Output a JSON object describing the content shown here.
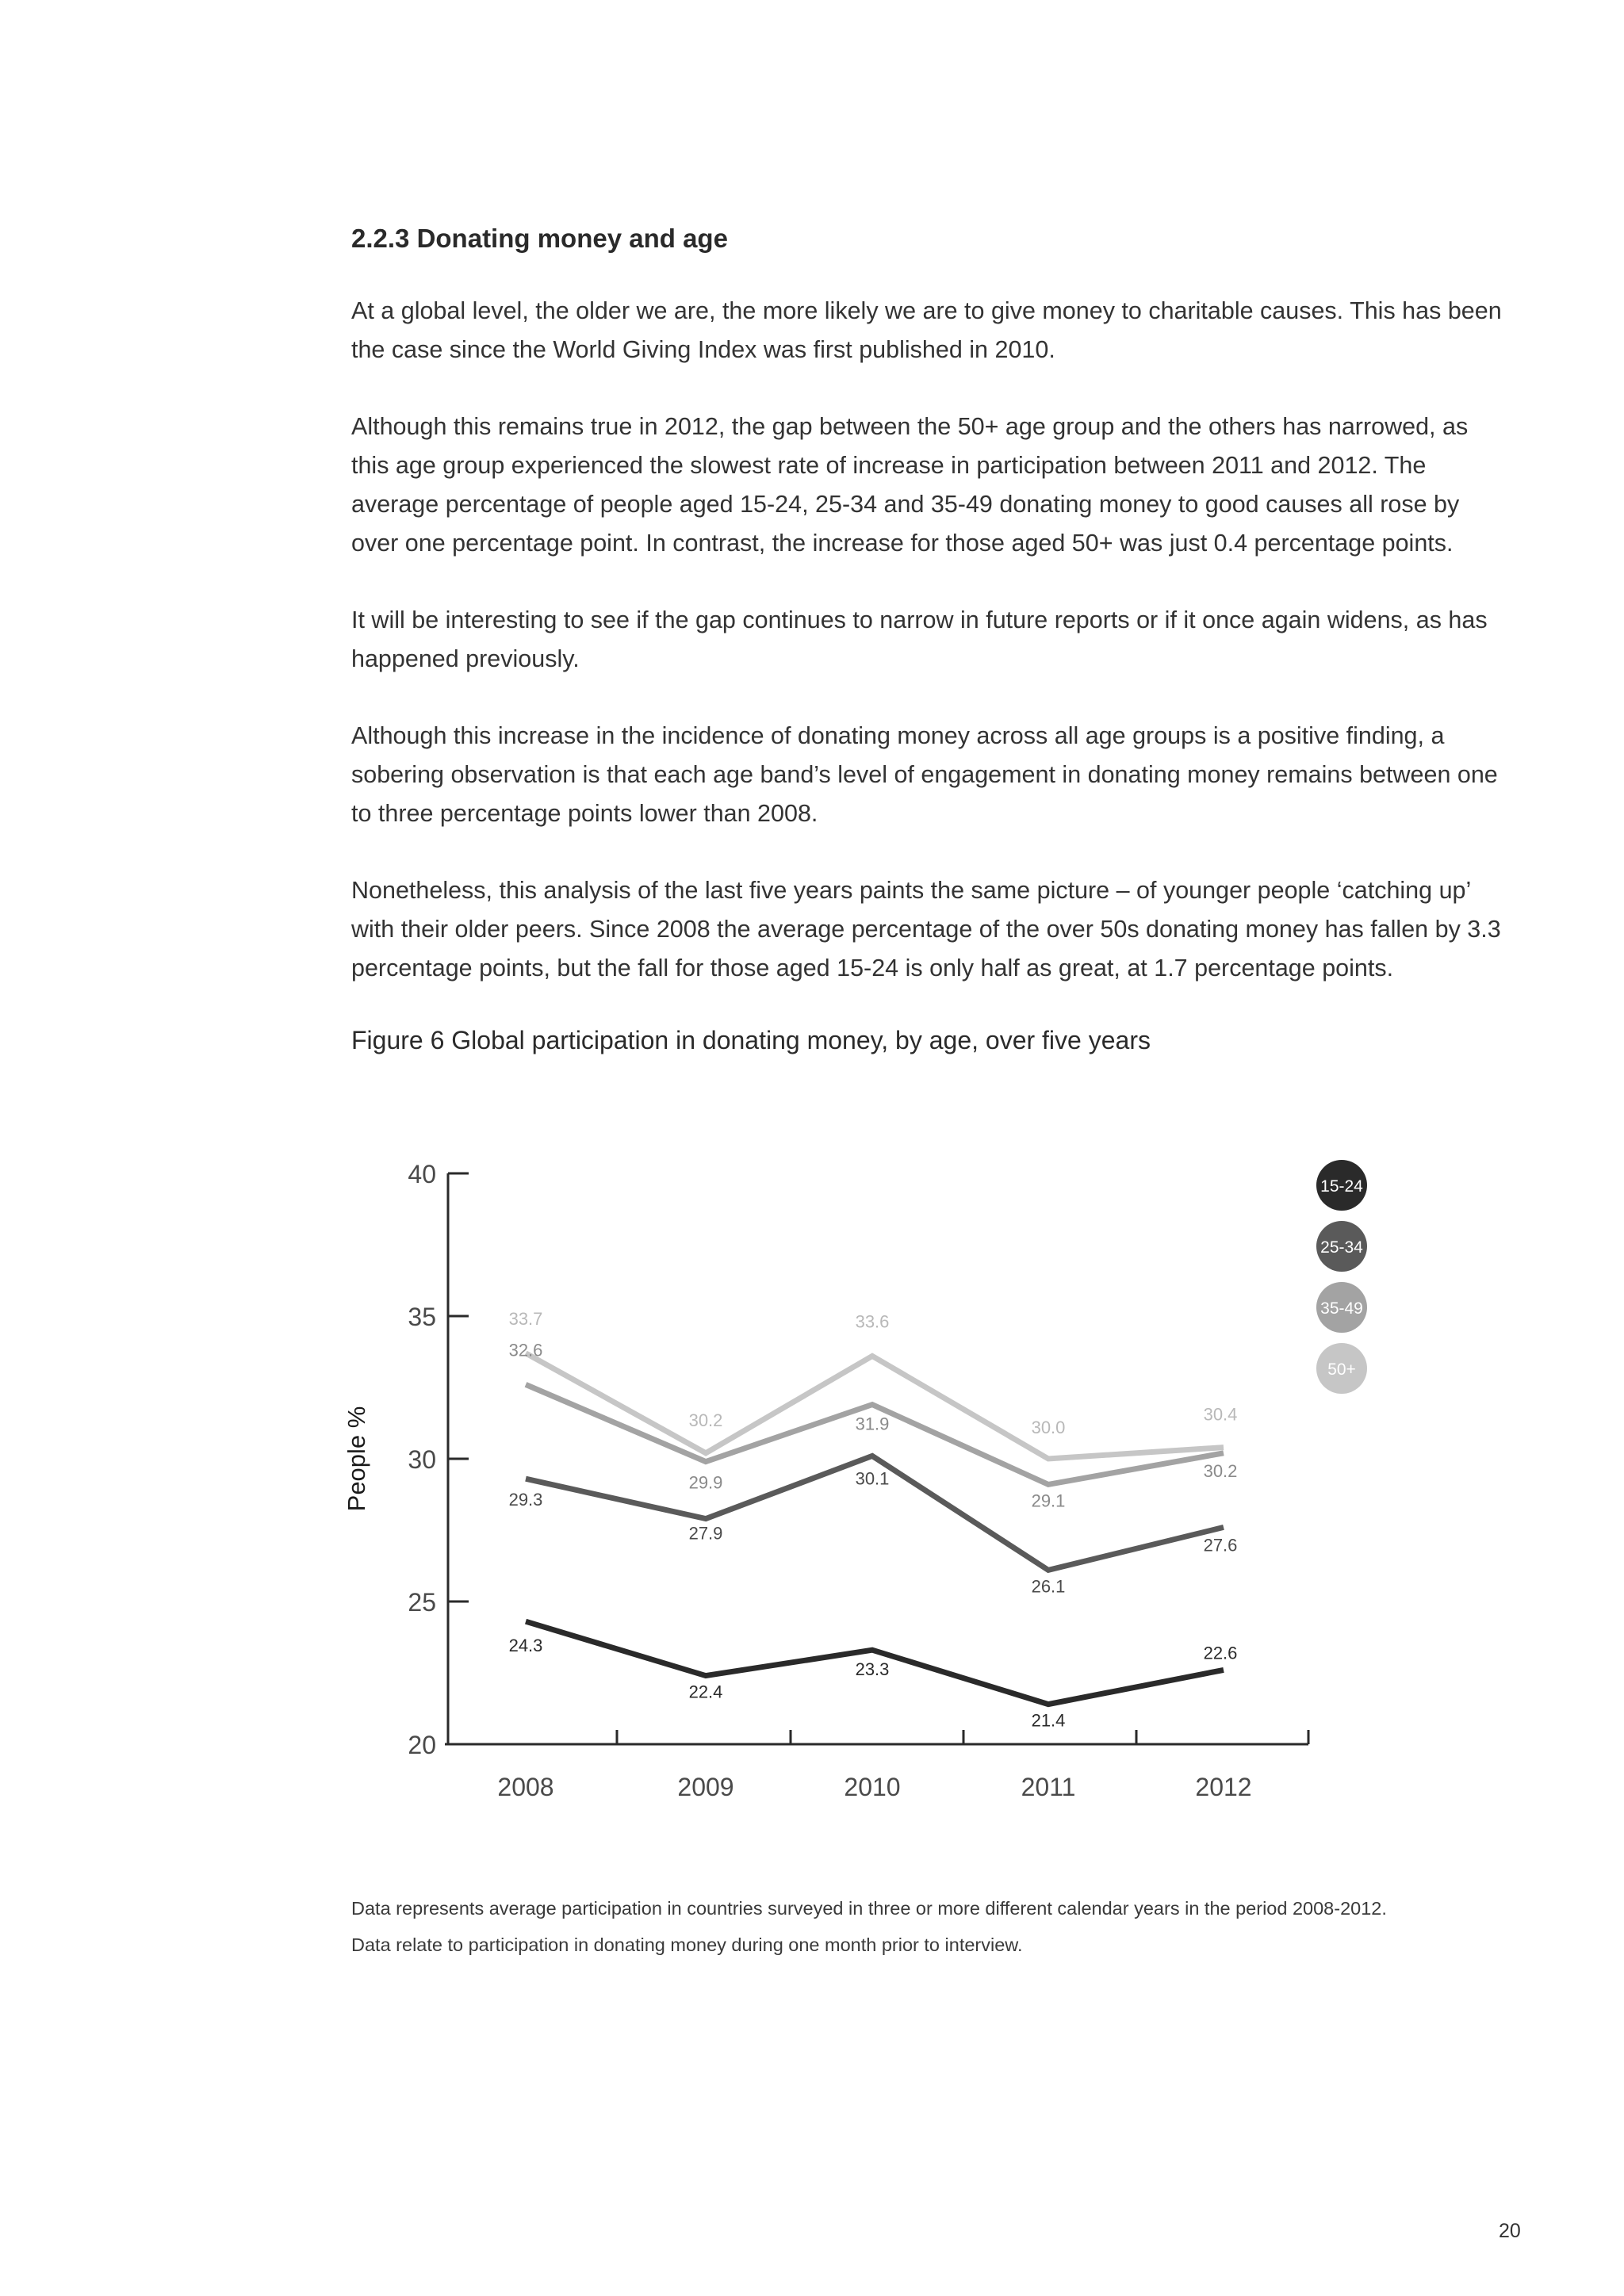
{
  "section": {
    "heading": "2.2.3  Donating money and age"
  },
  "paragraphs": [
    "At a global level, the older we are, the more likely we are to give money to charitable causes. This has been the case since the World Giving Index was first published in 2010.",
    "Although this remains true in 2012, the gap between the 50+ age group and the others has narrowed, as this age group experienced the slowest rate of increase in participation between 2011 and 2012. The average percentage of people aged 15-24, 25-34 and 35-49 donating money to good causes all rose by over one percentage point. In contrast, the increase for those aged 50+ was just 0.4 percentage points.",
    "It will be interesting to see if the gap continues to narrow in future reports or if it once again widens, as has happened previously.",
    "Although this increase in the incidence of donating money across all age groups is a positive finding, a sobering observation is that each age band’s level of engagement in donating money remains between one to three percentage points lower than 2008.",
    "Nonetheless, this analysis of the last five years paints the same picture – of younger people ‘catching up’ with their older peers. Since 2008 the average percentage of the over 50s donating money has fallen by 3.3 percentage points, but the fall for those aged 15-24 is only half as great, at 1.7 percentage points."
  ],
  "figure": {
    "title": "Figure 6  Global participation in donating money, by age, over five years"
  },
  "chart_data": {
    "type": "line",
    "title": "",
    "xlabel": "",
    "ylabel": "People %",
    "ylim": [
      20,
      40
    ],
    "yticks": [
      "20",
      "25",
      "30",
      "35",
      "40"
    ],
    "categories": [
      "2008",
      "2009",
      "2010",
      "2011",
      "2012"
    ],
    "series": [
      {
        "name": "15-24",
        "color": "#2a2a2a",
        "values": [
          24.3,
          22.4,
          23.3,
          21.4,
          22.6
        ],
        "labels": [
          "24.3",
          "22.4",
          "23.3",
          "21.4",
          "22.6"
        ]
      },
      {
        "name": "25-34",
        "color": "#5a5a5a",
        "values": [
          29.3,
          27.9,
          30.1,
          26.1,
          27.6
        ],
        "labels": [
          "29.3",
          "27.9",
          "30.1",
          "26.1",
          "27.6"
        ]
      },
      {
        "name": "35-49",
        "color": "#a3a3a3",
        "values": [
          32.6,
          29.9,
          31.9,
          29.1,
          30.2
        ],
        "labels": [
          "32.6",
          "29.9",
          "31.9",
          "29.1",
          "30.2"
        ]
      },
      {
        "name": "50+",
        "color": "#c6c6c6",
        "values": [
          33.7,
          30.2,
          33.6,
          30.0,
          30.4
        ],
        "labels": [
          "33.7",
          "30.2",
          "33.6",
          "30.0",
          "30.4"
        ]
      }
    ],
    "legend": "right",
    "grid": false
  },
  "notes": [
    "Data represents average participation in countries surveyed in three or more different calendar years in the period 2008-2012.",
    "Data relate to participation in donating money during one month prior to interview."
  ],
  "page_number": "20"
}
